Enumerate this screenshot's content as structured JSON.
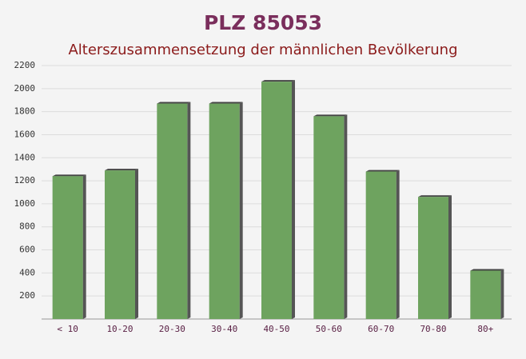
{
  "chart_data": {
    "type": "bar",
    "title": "PLZ 85053",
    "subtitle": "Alterszusammensetzung der männlichen Bevölkerung",
    "categories": [
      "< 10",
      "10-20",
      "20-30",
      "30-40",
      "40-50",
      "50-60",
      "60-70",
      "70-80",
      "80+"
    ],
    "values": [
      1240,
      1290,
      1870,
      1870,
      2060,
      1760,
      1280,
      1060,
      420
    ],
    "color": "#6ea35f",
    "ylim": [
      0,
      2200
    ],
    "yticks": [
      200,
      400,
      600,
      800,
      1000,
      1200,
      1400,
      1600,
      1800,
      2000,
      2200
    ],
    "grid": true
  }
}
